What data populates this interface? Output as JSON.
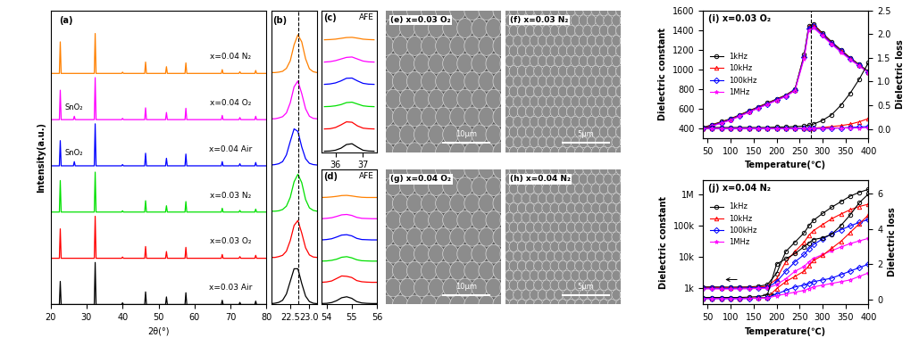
{
  "chart_data": [
    {
      "type": "xrd",
      "title": "(a)",
      "x_label": "2θ(°)",
      "y_label": "Intensity(a.u.)",
      "stacked": true,
      "x": [
        22.7,
        26.6,
        32.4,
        40.0,
        46.4,
        52.2,
        57.6,
        67.7,
        72.6,
        77.0
      ],
      "series": [
        {
          "name": "x=0.03 Air",
          "color": "#000000",
          "values": [
            0.55,
            0,
            1.0,
            0.04,
            0.3,
            0.18,
            0.28,
            0.1,
            0.05,
            0.08
          ]
        },
        {
          "name": "x=0.03 O₂",
          "color": "#ff0000",
          "values": [
            0.7,
            0,
            1.0,
            0.03,
            0.28,
            0.16,
            0.26,
            0.09,
            0.04,
            0.07
          ]
        },
        {
          "name": "x=0.03 N₂",
          "color": "#00e000",
          "values": [
            0.75,
            0,
            0.95,
            0.03,
            0.27,
            0.15,
            0.25,
            0.09,
            0.04,
            0.07
          ]
        },
        {
          "name": "x=0.04 Air",
          "color": "#0000ff",
          "values": [
            0.6,
            0.1,
            1.0,
            0.03,
            0.3,
            0.18,
            0.28,
            0.1,
            0.05,
            0.08
          ]
        },
        {
          "name": "x=0.04 O₂",
          "color": "#ff00ff",
          "values": [
            0.7,
            0.08,
            1.0,
            0.03,
            0.28,
            0.17,
            0.27,
            0.1,
            0.05,
            0.08
          ]
        },
        {
          "name": "x=0.04 N₂",
          "color": "#ff8000",
          "values": [
            0.75,
            0,
            0.95,
            0.03,
            0.27,
            0.16,
            0.25,
            0.09,
            0.04,
            0.07
          ]
        }
      ],
      "annotations": [
        {
          "text": "SnO₂",
          "series": "x=0.04 Air",
          "x": 26.6
        },
        {
          "text": "SnO₂",
          "series": "x=0.04 O₂",
          "x": 26.6
        }
      ],
      "xlim": [
        20,
        80
      ],
      "xticks": [
        20,
        30,
        40,
        50,
        60,
        70,
        80
      ],
      "ylim": [
        0,
        7
      ],
      "tick_labels": "x"
    },
    {
      "type": "line",
      "title": "(b)",
      "stacked": true,
      "x": [
        22.0,
        22.1,
        22.2,
        22.3,
        22.4,
        22.5,
        22.6,
        22.7,
        22.8,
        22.9,
        23.0,
        23.1,
        23.2
      ],
      "series": [
        {
          "color": "#000000",
          "values": [
            0.02,
            0.03,
            0.05,
            0.1,
            0.25,
            0.55,
            0.85,
            0.85,
            0.5,
            0.2,
            0.07,
            0.03,
            0.02
          ]
        },
        {
          "color": "#ff0000",
          "values": [
            0.02,
            0.02,
            0.04,
            0.07,
            0.17,
            0.42,
            0.78,
            0.9,
            0.6,
            0.25,
            0.08,
            0.03,
            0.02
          ]
        },
        {
          "color": "#00e000",
          "values": [
            0.02,
            0.02,
            0.03,
            0.06,
            0.14,
            0.35,
            0.72,
            0.9,
            0.7,
            0.3,
            0.1,
            0.04,
            0.02
          ]
        },
        {
          "color": "#0000ff",
          "values": [
            0.02,
            0.03,
            0.05,
            0.1,
            0.26,
            0.58,
            0.88,
            0.82,
            0.45,
            0.17,
            0.06,
            0.03,
            0.02
          ]
        },
        {
          "color": "#ff00ff",
          "values": [
            0.02,
            0.02,
            0.04,
            0.07,
            0.16,
            0.4,
            0.78,
            0.92,
            0.62,
            0.26,
            0.08,
            0.03,
            0.02
          ]
        },
        {
          "color": "#ff8000",
          "values": [
            0.02,
            0.02,
            0.03,
            0.05,
            0.12,
            0.3,
            0.68,
            0.92,
            0.75,
            0.35,
            0.11,
            0.04,
            0.02
          ]
        }
      ],
      "vlines": [
        22.72
      ],
      "xlim": [
        22.0,
        23.2
      ],
      "xticks": [
        22.5,
        23.0
      ],
      "ylim": [
        0,
        7
      ],
      "tick_labels": "x"
    },
    {
      "type": "line",
      "title": "(c)",
      "stacked": true,
      "x": [
        35.6,
        35.8,
        36.0,
        36.2,
        36.4,
        36.6,
        36.8,
        37.0,
        37.2,
        37.4
      ],
      "series": [
        {
          "color": "#000000",
          "values": [
            0.05,
            0.06,
            0.1,
            0.2,
            0.38,
            0.42,
            0.25,
            0.1,
            0.06,
            0.05
          ]
        },
        {
          "color": "#ff0000",
          "values": [
            0.05,
            0.06,
            0.12,
            0.25,
            0.4,
            0.38,
            0.2,
            0.09,
            0.06,
            0.05
          ]
        },
        {
          "color": "#00e000",
          "values": [
            0.05,
            0.06,
            0.09,
            0.15,
            0.25,
            0.27,
            0.18,
            0.09,
            0.06,
            0.05
          ]
        },
        {
          "color": "#0000ff",
          "values": [
            0.05,
            0.07,
            0.12,
            0.22,
            0.35,
            0.36,
            0.22,
            0.1,
            0.06,
            0.05
          ]
        },
        {
          "color": "#ff00ff",
          "values": [
            0.05,
            0.07,
            0.12,
            0.2,
            0.28,
            0.3,
            0.2,
            0.1,
            0.06,
            0.05
          ]
        },
        {
          "color": "#ff8000",
          "values": [
            0.05,
            0.06,
            0.08,
            0.12,
            0.16,
            0.17,
            0.13,
            0.08,
            0.06,
            0.05
          ]
        }
      ],
      "annotations": [
        {
          "text": "AFE"
        }
      ],
      "xlim": [
        35.5,
        37.5
      ],
      "xticks": [
        36,
        37
      ],
      "ylim": [
        0,
        7
      ],
      "tick_labels": "x"
    },
    {
      "type": "line",
      "title": "(d)",
      "stacked": true,
      "x": [
        53.8,
        54.0,
        54.2,
        54.4,
        54.6,
        54.8,
        55.0,
        55.2,
        55.4,
        55.6,
        55.8,
        56.0
      ],
      "series": [
        {
          "color": "#000000",
          "values": [
            0.05,
            0.06,
            0.1,
            0.2,
            0.35,
            0.4,
            0.32,
            0.15,
            0.08,
            0.06,
            0.05,
            0.05
          ]
        },
        {
          "color": "#ff0000",
          "values": [
            0.05,
            0.07,
            0.12,
            0.25,
            0.38,
            0.36,
            0.3,
            0.14,
            0.08,
            0.06,
            0.05,
            0.05
          ]
        },
        {
          "color": "#00e000",
          "values": [
            0.05,
            0.06,
            0.09,
            0.15,
            0.25,
            0.28,
            0.22,
            0.12,
            0.07,
            0.06,
            0.05,
            0.05
          ]
        },
        {
          "color": "#0000ff",
          "values": [
            0.05,
            0.07,
            0.11,
            0.2,
            0.3,
            0.32,
            0.26,
            0.13,
            0.07,
            0.06,
            0.05,
            0.05
          ]
        },
        {
          "color": "#ff00ff",
          "values": [
            0.05,
            0.07,
            0.1,
            0.17,
            0.25,
            0.27,
            0.22,
            0.12,
            0.07,
            0.06,
            0.05,
            0.05
          ]
        },
        {
          "color": "#ff8000",
          "values": [
            0.05,
            0.06,
            0.08,
            0.11,
            0.15,
            0.16,
            0.13,
            0.09,
            0.06,
            0.05,
            0.05,
            0.05
          ]
        }
      ],
      "annotations": [
        {
          "text": "AFE"
        }
      ],
      "xlim": [
        53.8,
        56.0
      ],
      "xticks": [
        54,
        55,
        56
      ],
      "ylim": [
        0,
        7
      ],
      "tick_labels": "x"
    },
    {
      "type": "image",
      "title": "(e) x=0.03 O₂",
      "scale_bar": "10μm"
    },
    {
      "type": "image",
      "title": "(f) x=0.03 N₂",
      "scale_bar": "5μm"
    },
    {
      "type": "image",
      "title": "(g) x=0.04 O₂",
      "scale_bar": "10μm"
    },
    {
      "type": "image",
      "title": "(h) x=0.04 N₂",
      "scale_bar": "5μm"
    },
    {
      "type": "line",
      "title": "(i) x=0.03 O₂",
      "x_label": "Temperature(℃)",
      "y_label": "Dielectric constant",
      "y2_label": "Dielectric loss",
      "x": [
        40,
        60,
        80,
        100,
        120,
        140,
        160,
        180,
        200,
        220,
        240,
        260,
        270,
        280,
        300,
        320,
        340,
        360,
        380,
        400
      ],
      "series": [
        {
          "name": "1kHz",
          "color": "#000000",
          "marker": "circle",
          "values": [
            410,
            440,
            470,
            500,
            540,
            580,
            620,
            660,
            700,
            740,
            800,
            1150,
            1440,
            1460,
            1370,
            1280,
            1200,
            1120,
            1050,
            980
          ]
        },
        {
          "name": "10kHz",
          "color": "#ff0000",
          "marker": "triangle",
          "values": [
            405,
            435,
            465,
            495,
            535,
            575,
            615,
            655,
            695,
            735,
            795,
            1140,
            1430,
            1450,
            1360,
            1270,
            1190,
            1115,
            1045,
            975
          ]
        },
        {
          "name": "100kHz",
          "color": "#0000ff",
          "marker": "diamond",
          "values": [
            400,
            430,
            460,
            490,
            530,
            570,
            610,
            650,
            690,
            730,
            790,
            1130,
            1420,
            1440,
            1350,
            1265,
            1185,
            1110,
            1040,
            970
          ]
        },
        {
          "name": "1MHz",
          "color": "#ff00ff",
          "marker": "star",
          "values": [
            395,
            425,
            455,
            485,
            525,
            565,
            605,
            645,
            685,
            725,
            785,
            1110,
            1400,
            1425,
            1340,
            1255,
            1175,
            1100,
            1035,
            965
          ]
        },
        {
          "axis": "y2",
          "color": "#000000",
          "marker": "circle",
          "values": [
            0.03,
            0.03,
            0.03,
            0.03,
            0.03,
            0.03,
            0.03,
            0.03,
            0.04,
            0.04,
            0.05,
            0.06,
            0.08,
            0.1,
            0.18,
            0.3,
            0.5,
            0.75,
            1.05,
            1.4
          ]
        },
        {
          "axis": "y2",
          "color": "#ff0000",
          "marker": "triangle",
          "values": [
            0.01,
            0.01,
            0.01,
            0.01,
            0.01,
            0.01,
            0.01,
            0.01,
            0.01,
            0.01,
            0.01,
            0.02,
            0.02,
            0.02,
            0.03,
            0.05,
            0.07,
            0.1,
            0.15,
            0.22
          ]
        },
        {
          "axis": "y2",
          "color": "#0000ff",
          "marker": "diamond",
          "values": [
            0.01,
            0.01,
            0.01,
            0.01,
            0.01,
            0.01,
            0.01,
            0.01,
            0.01,
            0.01,
            0.01,
            0.01,
            0.01,
            0.01,
            0.01,
            0.02,
            0.02,
            0.03,
            0.04,
            0.05
          ]
        },
        {
          "axis": "y2",
          "color": "#ff00ff",
          "marker": "star",
          "values": [
            0.01,
            0.01,
            0.01,
            0.01,
            0.01,
            0.01,
            0.01,
            0.01,
            0.01,
            0.01,
            0.01,
            0.01,
            0.01,
            0.01,
            0.01,
            0.01,
            0.02,
            0.02,
            0.02,
            0.03
          ]
        }
      ],
      "vlines": [
        275
      ],
      "xlim": [
        40,
        400
      ],
      "xticks": [
        50,
        100,
        150,
        200,
        250,
        300,
        350,
        400
      ],
      "ylim": [
        300,
        1600
      ],
      "yticks": [
        400,
        600,
        800,
        1000,
        1200,
        1400,
        1600
      ],
      "y2lim": [
        -0.2,
        2.5
      ],
      "y2ticks": [
        0.0,
        0.5,
        1.0,
        1.5,
        2.0,
        2.5
      ],
      "legend": "center left"
    },
    {
      "type": "line",
      "title": "(j) x=0.04 N₂",
      "x_label": "Temperature(℃)",
      "y_label": "Dielectric constant",
      "y2_label": "Dielectric loss",
      "log": "y",
      "x": [
        40,
        60,
        80,
        100,
        120,
        140,
        160,
        180,
        200,
        220,
        240,
        260,
        270,
        280,
        300,
        320,
        340,
        360,
        380,
        400
      ],
      "series": [
        {
          "name": "1kHz",
          "color": "#000000",
          "marker": "circle",
          "values": [
            1100,
            1100,
            1090,
            1080,
            1090,
            1100,
            1150,
            1300,
            3000,
            15000,
            30000,
            60000,
            100000,
            150000,
            250000,
            400000,
            600000,
            900000,
            1200000,
            1500000
          ]
        },
        {
          "name": "10kHz",
          "color": "#ff0000",
          "marker": "triangle",
          "values": [
            1050,
            1050,
            1040,
            1040,
            1050,
            1060,
            1080,
            1150,
            2000,
            7000,
            15000,
            30000,
            50000,
            70000,
            110000,
            170000,
            240000,
            330000,
            420000,
            500000
          ]
        },
        {
          "name": "100kHz",
          "color": "#0000ff",
          "marker": "diamond",
          "values": [
            1000,
            1000,
            990,
            990,
            1000,
            1010,
            1030,
            1050,
            1600,
            3500,
            7000,
            12000,
            18000,
            25000,
            38000,
            55000,
            75000,
            100000,
            130000,
            160000
          ]
        },
        {
          "name": "1MHz",
          "color": "#ff00ff",
          "marker": "star",
          "values": [
            950,
            950,
            940,
            940,
            950,
            960,
            980,
            1000,
            1300,
            2000,
            3500,
            5000,
            7000,
            9000,
            12000,
            16000,
            21000,
            27000,
            33000,
            40000
          ]
        },
        {
          "axis": "y2",
          "color": "#000000",
          "marker": "circle",
          "values": [
            0.1,
            0.1,
            0.1,
            0.1,
            0.1,
            0.12,
            0.15,
            0.25,
            2.0,
            2.3,
            2.6,
            3.0,
            3.2,
            3.4,
            3.5,
            3.7,
            4.2,
            4.8,
            5.5,
            6.0
          ]
        },
        {
          "axis": "y2",
          "color": "#ff0000",
          "marker": "triangle",
          "values": [
            0.05,
            0.05,
            0.05,
            0.05,
            0.05,
            0.06,
            0.08,
            0.1,
            0.6,
            1.0,
            1.3,
            1.6,
            1.9,
            2.2,
            2.5,
            2.9,
            3.3,
            3.8,
            4.3,
            4.8
          ]
        },
        {
          "axis": "y2",
          "color": "#0000ff",
          "marker": "diamond",
          "values": [
            0.04,
            0.04,
            0.04,
            0.04,
            0.04,
            0.05,
            0.06,
            0.08,
            0.3,
            0.5,
            0.7,
            0.8,
            0.9,
            1.0,
            1.1,
            1.2,
            1.4,
            1.6,
            1.8,
            2.0
          ]
        },
        {
          "axis": "y2",
          "color": "#ff00ff",
          "marker": "star",
          "values": [
            0.03,
            0.03,
            0.03,
            0.03,
            0.03,
            0.04,
            0.05,
            0.06,
            0.2,
            0.3,
            0.4,
            0.5,
            0.6,
            0.7,
            0.8,
            0.9,
            1.0,
            1.1,
            1.3,
            1.5
          ]
        }
      ],
      "xlim": [
        40,
        400
      ],
      "xticks": [
        50,
        100,
        150,
        200,
        250,
        300,
        350,
        400
      ],
      "ylim": [
        300,
        3000000
      ],
      "yticks": [
        {
          "value": 1000,
          "label": "1k"
        },
        {
          "value": 10000,
          "label": "10k"
        },
        {
          "value": 100000,
          "label": "100k"
        },
        {
          "value": 1000000,
          "label": "1M"
        }
      ],
      "y2lim": [
        -0.3,
        6.8
      ],
      "y2ticks": [
        0,
        2,
        4,
        6
      ],
      "legend": "upper left"
    }
  ]
}
